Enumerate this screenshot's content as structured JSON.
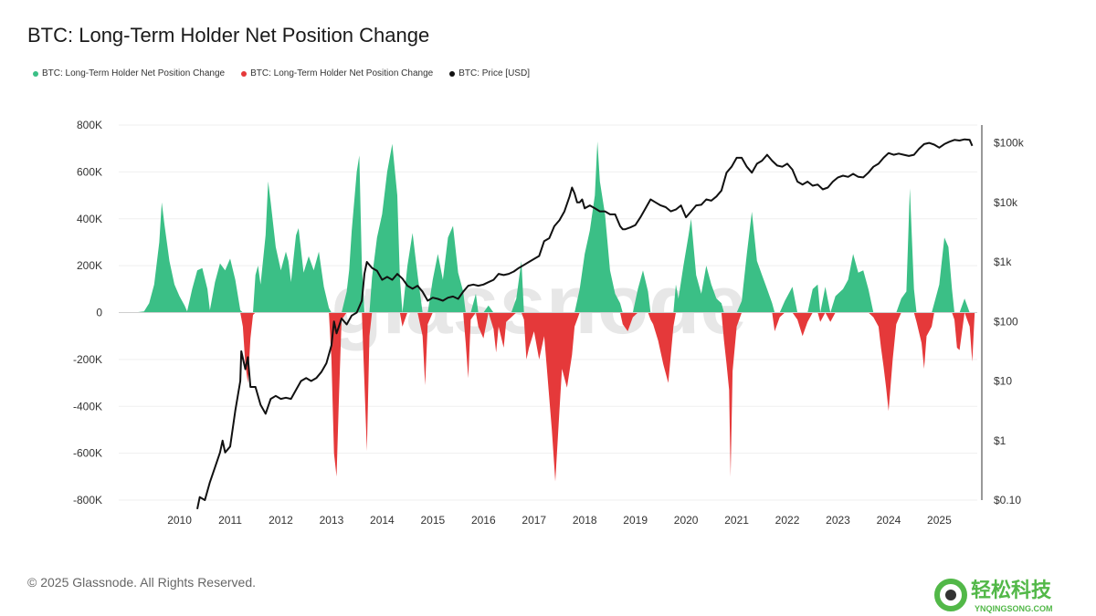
{
  "chart_data": {
    "type": "area",
    "title": "BTC: Long-Term Holder Net Position Change",
    "legend": [
      {
        "label": "BTC: Long-Term Holder Net Position Change",
        "color": "#3bbf86"
      },
      {
        "label": "BTC: Long-Term Holder Net Position Change",
        "color": "#e5393a"
      },
      {
        "label": "BTC: Price [USD]",
        "color": "#111111"
      }
    ],
    "x_ticks": [
      "2010",
      "2011",
      "2012",
      "2013",
      "2014",
      "2015",
      "2016",
      "2017",
      "2018",
      "2019",
      "2020",
      "2021",
      "2022",
      "2023",
      "2024",
      "2025"
    ],
    "y_left_ticks": [
      "800K",
      "600K",
      "400K",
      "200K",
      "0",
      "-200K",
      "-400K",
      "-600K",
      "-800K"
    ],
    "y_left_range": [
      -800000,
      800000
    ],
    "y_right_ticks": [
      "$100k",
      "$10k",
      "$1k",
      "$100",
      "$10",
      "$1",
      "$0.10"
    ],
    "y_right_range_log10": [
      -1,
      5.3
    ],
    "x_range": [
      2009.0,
      2025.95
    ],
    "net_position_change": [
      [
        2009.3,
        0
      ],
      [
        2009.5,
        5000
      ],
      [
        2009.6,
        40000
      ],
      [
        2009.7,
        120000
      ],
      [
        2009.8,
        300000
      ],
      [
        2009.85,
        470000
      ],
      [
        2009.9,
        380000
      ],
      [
        2010.0,
        220000
      ],
      [
        2010.1,
        120000
      ],
      [
        2010.2,
        70000
      ],
      [
        2010.3,
        30000
      ],
      [
        2010.35,
        5000
      ],
      [
        2010.45,
        100000
      ],
      [
        2010.55,
        180000
      ],
      [
        2010.65,
        190000
      ],
      [
        2010.75,
        100000
      ],
      [
        2010.8,
        10000
      ],
      [
        2010.9,
        130000
      ],
      [
        2011.0,
        210000
      ],
      [
        2011.1,
        180000
      ],
      [
        2011.2,
        230000
      ],
      [
        2011.3,
        140000
      ],
      [
        2011.4,
        10000
      ],
      [
        2011.45,
        -60000
      ],
      [
        2011.5,
        -220000
      ],
      [
        2011.55,
        -300000
      ],
      [
        2011.6,
        -110000
      ],
      [
        2011.65,
        -10000
      ],
      [
        2011.7,
        160000
      ],
      [
        2011.75,
        200000
      ],
      [
        2011.8,
        120000
      ],
      [
        2011.9,
        330000
      ],
      [
        2011.95,
        560000
      ],
      [
        2012.0,
        470000
      ],
      [
        2012.1,
        280000
      ],
      [
        2012.2,
        180000
      ],
      [
        2012.3,
        260000
      ],
      [
        2012.35,
        220000
      ],
      [
        2012.4,
        130000
      ],
      [
        2012.5,
        330000
      ],
      [
        2012.55,
        360000
      ],
      [
        2012.65,
        170000
      ],
      [
        2012.75,
        240000
      ],
      [
        2012.85,
        180000
      ],
      [
        2012.95,
        260000
      ],
      [
        2013.05,
        110000
      ],
      [
        2013.15,
        20000
      ],
      [
        2013.2,
        -200000
      ],
      [
        2013.25,
        -600000
      ],
      [
        2013.3,
        -700000
      ],
      [
        2013.35,
        -350000
      ],
      [
        2013.4,
        -30000
      ],
      [
        2013.5,
        90000
      ],
      [
        2013.55,
        180000
      ],
      [
        2013.6,
        350000
      ],
      [
        2013.7,
        600000
      ],
      [
        2013.75,
        670000
      ],
      [
        2013.8,
        200000
      ],
      [
        2013.85,
        -300000
      ],
      [
        2013.9,
        -590000
      ],
      [
        2013.95,
        -100000
      ],
      [
        2014.0,
        150000
      ],
      [
        2014.1,
        320000
      ],
      [
        2014.2,
        420000
      ],
      [
        2014.3,
        600000
      ],
      [
        2014.4,
        720000
      ],
      [
        2014.5,
        500000
      ],
      [
        2014.55,
        150000
      ],
      [
        2014.6,
        -60000
      ],
      [
        2014.7,
        200000
      ],
      [
        2014.8,
        340000
      ],
      [
        2014.9,
        160000
      ],
      [
        2015.0,
        -100000
      ],
      [
        2015.05,
        -310000
      ],
      [
        2015.1,
        -50000
      ],
      [
        2015.2,
        140000
      ],
      [
        2015.3,
        250000
      ],
      [
        2015.4,
        140000
      ],
      [
        2015.5,
        320000
      ],
      [
        2015.6,
        370000
      ],
      [
        2015.7,
        170000
      ],
      [
        2015.8,
        90000
      ],
      [
        2015.85,
        -130000
      ],
      [
        2015.9,
        -280000
      ],
      [
        2015.95,
        -30000
      ],
      [
        2016.05,
        80000
      ],
      [
        2016.1,
        -60000
      ],
      [
        2016.2,
        -110000
      ],
      [
        2016.3,
        30000
      ],
      [
        2016.4,
        -70000
      ],
      [
        2016.45,
        -170000
      ],
      [
        2016.5,
        -60000
      ],
      [
        2016.6,
        -150000
      ],
      [
        2016.65,
        -40000
      ],
      [
        2016.75,
        -20000
      ],
      [
        2016.85,
        60000
      ],
      [
        2016.95,
        220000
      ],
      [
        2017.0,
        -30000
      ],
      [
        2017.05,
        -200000
      ],
      [
        2017.1,
        -150000
      ],
      [
        2017.2,
        -80000
      ],
      [
        2017.3,
        -200000
      ],
      [
        2017.4,
        -100000
      ],
      [
        2017.45,
        -230000
      ],
      [
        2017.55,
        -500000
      ],
      [
        2017.62,
        -720000
      ],
      [
        2017.7,
        -420000
      ],
      [
        2017.75,
        -240000
      ],
      [
        2017.85,
        -320000
      ],
      [
        2017.95,
        -180000
      ],
      [
        2018.0,
        -60000
      ],
      [
        2018.1,
        100000
      ],
      [
        2018.2,
        250000
      ],
      [
        2018.3,
        350000
      ],
      [
        2018.4,
        500000
      ],
      [
        2018.45,
        730000
      ],
      [
        2018.5,
        560000
      ],
      [
        2018.6,
        420000
      ],
      [
        2018.7,
        180000
      ],
      [
        2018.8,
        80000
      ],
      [
        2018.9,
        40000
      ],
      [
        2018.95,
        -50000
      ],
      [
        2019.05,
        -80000
      ],
      [
        2019.15,
        -20000
      ],
      [
        2019.25,
        100000
      ],
      [
        2019.35,
        180000
      ],
      [
        2019.45,
        90000
      ],
      [
        2019.5,
        -30000
      ],
      [
        2019.55,
        -50000
      ],
      [
        2019.65,
        -120000
      ],
      [
        2019.75,
        -220000
      ],
      [
        2019.85,
        -300000
      ],
      [
        2019.95,
        -60000
      ],
      [
        2020.0,
        120000
      ],
      [
        2020.05,
        60000
      ],
      [
        2020.15,
        200000
      ],
      [
        2020.25,
        330000
      ],
      [
        2020.3,
        400000
      ],
      [
        2020.4,
        160000
      ],
      [
        2020.5,
        80000
      ],
      [
        2020.6,
        200000
      ],
      [
        2020.7,
        120000
      ],
      [
        2020.8,
        60000
      ],
      [
        2020.9,
        40000
      ],
      [
        2020.95,
        -120000
      ],
      [
        2021.0,
        -220000
      ],
      [
        2021.05,
        -330000
      ],
      [
        2021.08,
        -700000
      ],
      [
        2021.12,
        -250000
      ],
      [
        2021.2,
        -60000
      ],
      [
        2021.3,
        50000
      ],
      [
        2021.4,
        250000
      ],
      [
        2021.5,
        430000
      ],
      [
        2021.6,
        220000
      ],
      [
        2021.7,
        160000
      ],
      [
        2021.8,
        100000
      ],
      [
        2021.9,
        40000
      ],
      [
        2021.95,
        -80000
      ],
      [
        2022.05,
        -20000
      ],
      [
        2022.15,
        50000
      ],
      [
        2022.3,
        110000
      ],
      [
        2022.4,
        -30000
      ],
      [
        2022.5,
        -100000
      ],
      [
        2022.6,
        -40000
      ],
      [
        2022.7,
        100000
      ],
      [
        2022.8,
        120000
      ],
      [
        2022.85,
        -40000
      ],
      [
        2022.95,
        110000
      ],
      [
        2023.05,
        -40000
      ],
      [
        2023.15,
        70000
      ],
      [
        2023.3,
        100000
      ],
      [
        2023.4,
        140000
      ],
      [
        2023.5,
        250000
      ],
      [
        2023.6,
        170000
      ],
      [
        2023.7,
        180000
      ],
      [
        2023.8,
        100000
      ],
      [
        2023.9,
        -20000
      ],
      [
        2024.0,
        -60000
      ],
      [
        2024.05,
        -150000
      ],
      [
        2024.1,
        -230000
      ],
      [
        2024.15,
        -320000
      ],
      [
        2024.2,
        -420000
      ],
      [
        2024.28,
        -200000
      ],
      [
        2024.35,
        -50000
      ],
      [
        2024.45,
        60000
      ],
      [
        2024.55,
        90000
      ],
      [
        2024.62,
        530000
      ],
      [
        2024.7,
        100000
      ],
      [
        2024.75,
        -40000
      ],
      [
        2024.85,
        -130000
      ],
      [
        2024.9,
        -240000
      ],
      [
        2024.95,
        -100000
      ],
      [
        2025.05,
        -60000
      ],
      [
        2025.1,
        40000
      ],
      [
        2025.2,
        120000
      ],
      [
        2025.3,
        320000
      ],
      [
        2025.38,
        280000
      ],
      [
        2025.45,
        100000
      ],
      [
        2025.5,
        -30000
      ],
      [
        2025.55,
        -150000
      ],
      [
        2025.6,
        -160000
      ],
      [
        2025.7,
        60000
      ],
      [
        2025.8,
        -60000
      ],
      [
        2025.85,
        -210000
      ],
      [
        2025.9,
        0
      ]
    ],
    "price_log10": [
      [
        2010.55,
        -1.15
      ],
      [
        2010.6,
        -0.95
      ],
      [
        2010.7,
        -1.0
      ],
      [
        2010.8,
        -0.7
      ],
      [
        2010.9,
        -0.45
      ],
      [
        2011.0,
        -0.2
      ],
      [
        2011.05,
        0.0
      ],
      [
        2011.1,
        -0.2
      ],
      [
        2011.2,
        -0.1
      ],
      [
        2011.3,
        0.5
      ],
      [
        2011.4,
        1.0
      ],
      [
        2011.42,
        1.5
      ],
      [
        2011.5,
        1.2
      ],
      [
        2011.55,
        1.4
      ],
      [
        2011.6,
        0.9
      ],
      [
        2011.7,
        0.9
      ],
      [
        2011.8,
        0.6
      ],
      [
        2011.9,
        0.45
      ],
      [
        2012.0,
        0.7
      ],
      [
        2012.1,
        0.75
      ],
      [
        2012.2,
        0.7
      ],
      [
        2012.3,
        0.72
      ],
      [
        2012.4,
        0.7
      ],
      [
        2012.5,
        0.85
      ],
      [
        2012.6,
        1.0
      ],
      [
        2012.7,
        1.05
      ],
      [
        2012.8,
        1.0
      ],
      [
        2012.9,
        1.05
      ],
      [
        2013.0,
        1.15
      ],
      [
        2013.1,
        1.3
      ],
      [
        2013.2,
        1.6
      ],
      [
        2013.25,
        2.0
      ],
      [
        2013.3,
        1.8
      ],
      [
        2013.4,
        2.05
      ],
      [
        2013.5,
        1.95
      ],
      [
        2013.6,
        2.1
      ],
      [
        2013.7,
        2.15
      ],
      [
        2013.8,
        2.35
      ],
      [
        2013.85,
        2.8
      ],
      [
        2013.9,
        3.0
      ],
      [
        2014.0,
        2.9
      ],
      [
        2014.1,
        2.85
      ],
      [
        2014.2,
        2.7
      ],
      [
        2014.3,
        2.75
      ],
      [
        2014.4,
        2.7
      ],
      [
        2014.5,
        2.8
      ],
      [
        2014.6,
        2.72
      ],
      [
        2014.7,
        2.6
      ],
      [
        2014.8,
        2.55
      ],
      [
        2014.9,
        2.6
      ],
      [
        2015.0,
        2.5
      ],
      [
        2015.1,
        2.35
      ],
      [
        2015.2,
        2.4
      ],
      [
        2015.3,
        2.38
      ],
      [
        2015.4,
        2.35
      ],
      [
        2015.5,
        2.4
      ],
      [
        2015.6,
        2.42
      ],
      [
        2015.7,
        2.38
      ],
      [
        2015.8,
        2.5
      ],
      [
        2015.9,
        2.6
      ],
      [
        2016.0,
        2.62
      ],
      [
        2016.1,
        2.6
      ],
      [
        2016.2,
        2.62
      ],
      [
        2016.3,
        2.66
      ],
      [
        2016.4,
        2.7
      ],
      [
        2016.5,
        2.8
      ],
      [
        2016.6,
        2.78
      ],
      [
        2016.7,
        2.8
      ],
      [
        2016.8,
        2.84
      ],
      [
        2016.9,
        2.9
      ],
      [
        2017.0,
        2.95
      ],
      [
        2017.1,
        3.0
      ],
      [
        2017.2,
        3.05
      ],
      [
        2017.3,
        3.1
      ],
      [
        2017.4,
        3.35
      ],
      [
        2017.5,
        3.4
      ],
      [
        2017.6,
        3.6
      ],
      [
        2017.7,
        3.7
      ],
      [
        2017.8,
        3.85
      ],
      [
        2017.9,
        4.1
      ],
      [
        2017.95,
        4.25
      ],
      [
        2018.0,
        4.15
      ],
      [
        2018.05,
        4.0
      ],
      [
        2018.1,
        4.0
      ],
      [
        2018.15,
        4.05
      ],
      [
        2018.2,
        3.9
      ],
      [
        2018.3,
        3.95
      ],
      [
        2018.4,
        3.9
      ],
      [
        2018.5,
        3.85
      ],
      [
        2018.6,
        3.85
      ],
      [
        2018.7,
        3.8
      ],
      [
        2018.8,
        3.8
      ],
      [
        2018.9,
        3.6
      ],
      [
        2018.95,
        3.55
      ],
      [
        2019.0,
        3.55
      ],
      [
        2019.1,
        3.58
      ],
      [
        2019.2,
        3.62
      ],
      [
        2019.3,
        3.75
      ],
      [
        2019.4,
        3.9
      ],
      [
        2019.5,
        4.05
      ],
      [
        2019.6,
        4.0
      ],
      [
        2019.7,
        3.95
      ],
      [
        2019.8,
        3.92
      ],
      [
        2019.9,
        3.85
      ],
      [
        2020.0,
        3.88
      ],
      [
        2020.1,
        3.95
      ],
      [
        2020.2,
        3.75
      ],
      [
        2020.3,
        3.85
      ],
      [
        2020.4,
        3.95
      ],
      [
        2020.5,
        3.96
      ],
      [
        2020.6,
        4.05
      ],
      [
        2020.7,
        4.03
      ],
      [
        2020.8,
        4.1
      ],
      [
        2020.9,
        4.2
      ],
      [
        2021.0,
        4.5
      ],
      [
        2021.1,
        4.6
      ],
      [
        2021.2,
        4.75
      ],
      [
        2021.3,
        4.75
      ],
      [
        2021.4,
        4.6
      ],
      [
        2021.5,
        4.5
      ],
      [
        2021.6,
        4.65
      ],
      [
        2021.7,
        4.7
      ],
      [
        2021.8,
        4.8
      ],
      [
        2021.9,
        4.7
      ],
      [
        2022.0,
        4.62
      ],
      [
        2022.1,
        4.6
      ],
      [
        2022.2,
        4.65
      ],
      [
        2022.3,
        4.55
      ],
      [
        2022.4,
        4.35
      ],
      [
        2022.5,
        4.3
      ],
      [
        2022.6,
        4.35
      ],
      [
        2022.7,
        4.28
      ],
      [
        2022.8,
        4.3
      ],
      [
        2022.9,
        4.22
      ],
      [
        2023.0,
        4.25
      ],
      [
        2023.1,
        4.35
      ],
      [
        2023.2,
        4.42
      ],
      [
        2023.3,
        4.45
      ],
      [
        2023.4,
        4.43
      ],
      [
        2023.5,
        4.48
      ],
      [
        2023.6,
        4.43
      ],
      [
        2023.7,
        4.42
      ],
      [
        2023.8,
        4.5
      ],
      [
        2023.9,
        4.6
      ],
      [
        2024.0,
        4.65
      ],
      [
        2024.1,
        4.75
      ],
      [
        2024.2,
        4.83
      ],
      [
        2024.3,
        4.8
      ],
      [
        2024.4,
        4.82
      ],
      [
        2024.5,
        4.8
      ],
      [
        2024.6,
        4.78
      ],
      [
        2024.7,
        4.8
      ],
      [
        2024.8,
        4.9
      ],
      [
        2024.9,
        4.98
      ],
      [
        2025.0,
        5.0
      ],
      [
        2025.1,
        4.97
      ],
      [
        2025.2,
        4.92
      ],
      [
        2025.3,
        4.98
      ],
      [
        2025.4,
        5.02
      ],
      [
        2025.5,
        5.05
      ],
      [
        2025.6,
        5.04
      ],
      [
        2025.7,
        5.06
      ],
      [
        2025.8,
        5.05
      ],
      [
        2025.85,
        4.95
      ]
    ]
  },
  "watermark": "glassnode",
  "footer": {
    "copyright": "© 2025 Glassnode. All Rights Reserved."
  },
  "brand": {
    "name": "轻松科技",
    "url": "YNQINGSONG.COM"
  },
  "colors": {
    "positive": "#3bbf86",
    "negative": "#e5393a",
    "price": "#111111"
  }
}
